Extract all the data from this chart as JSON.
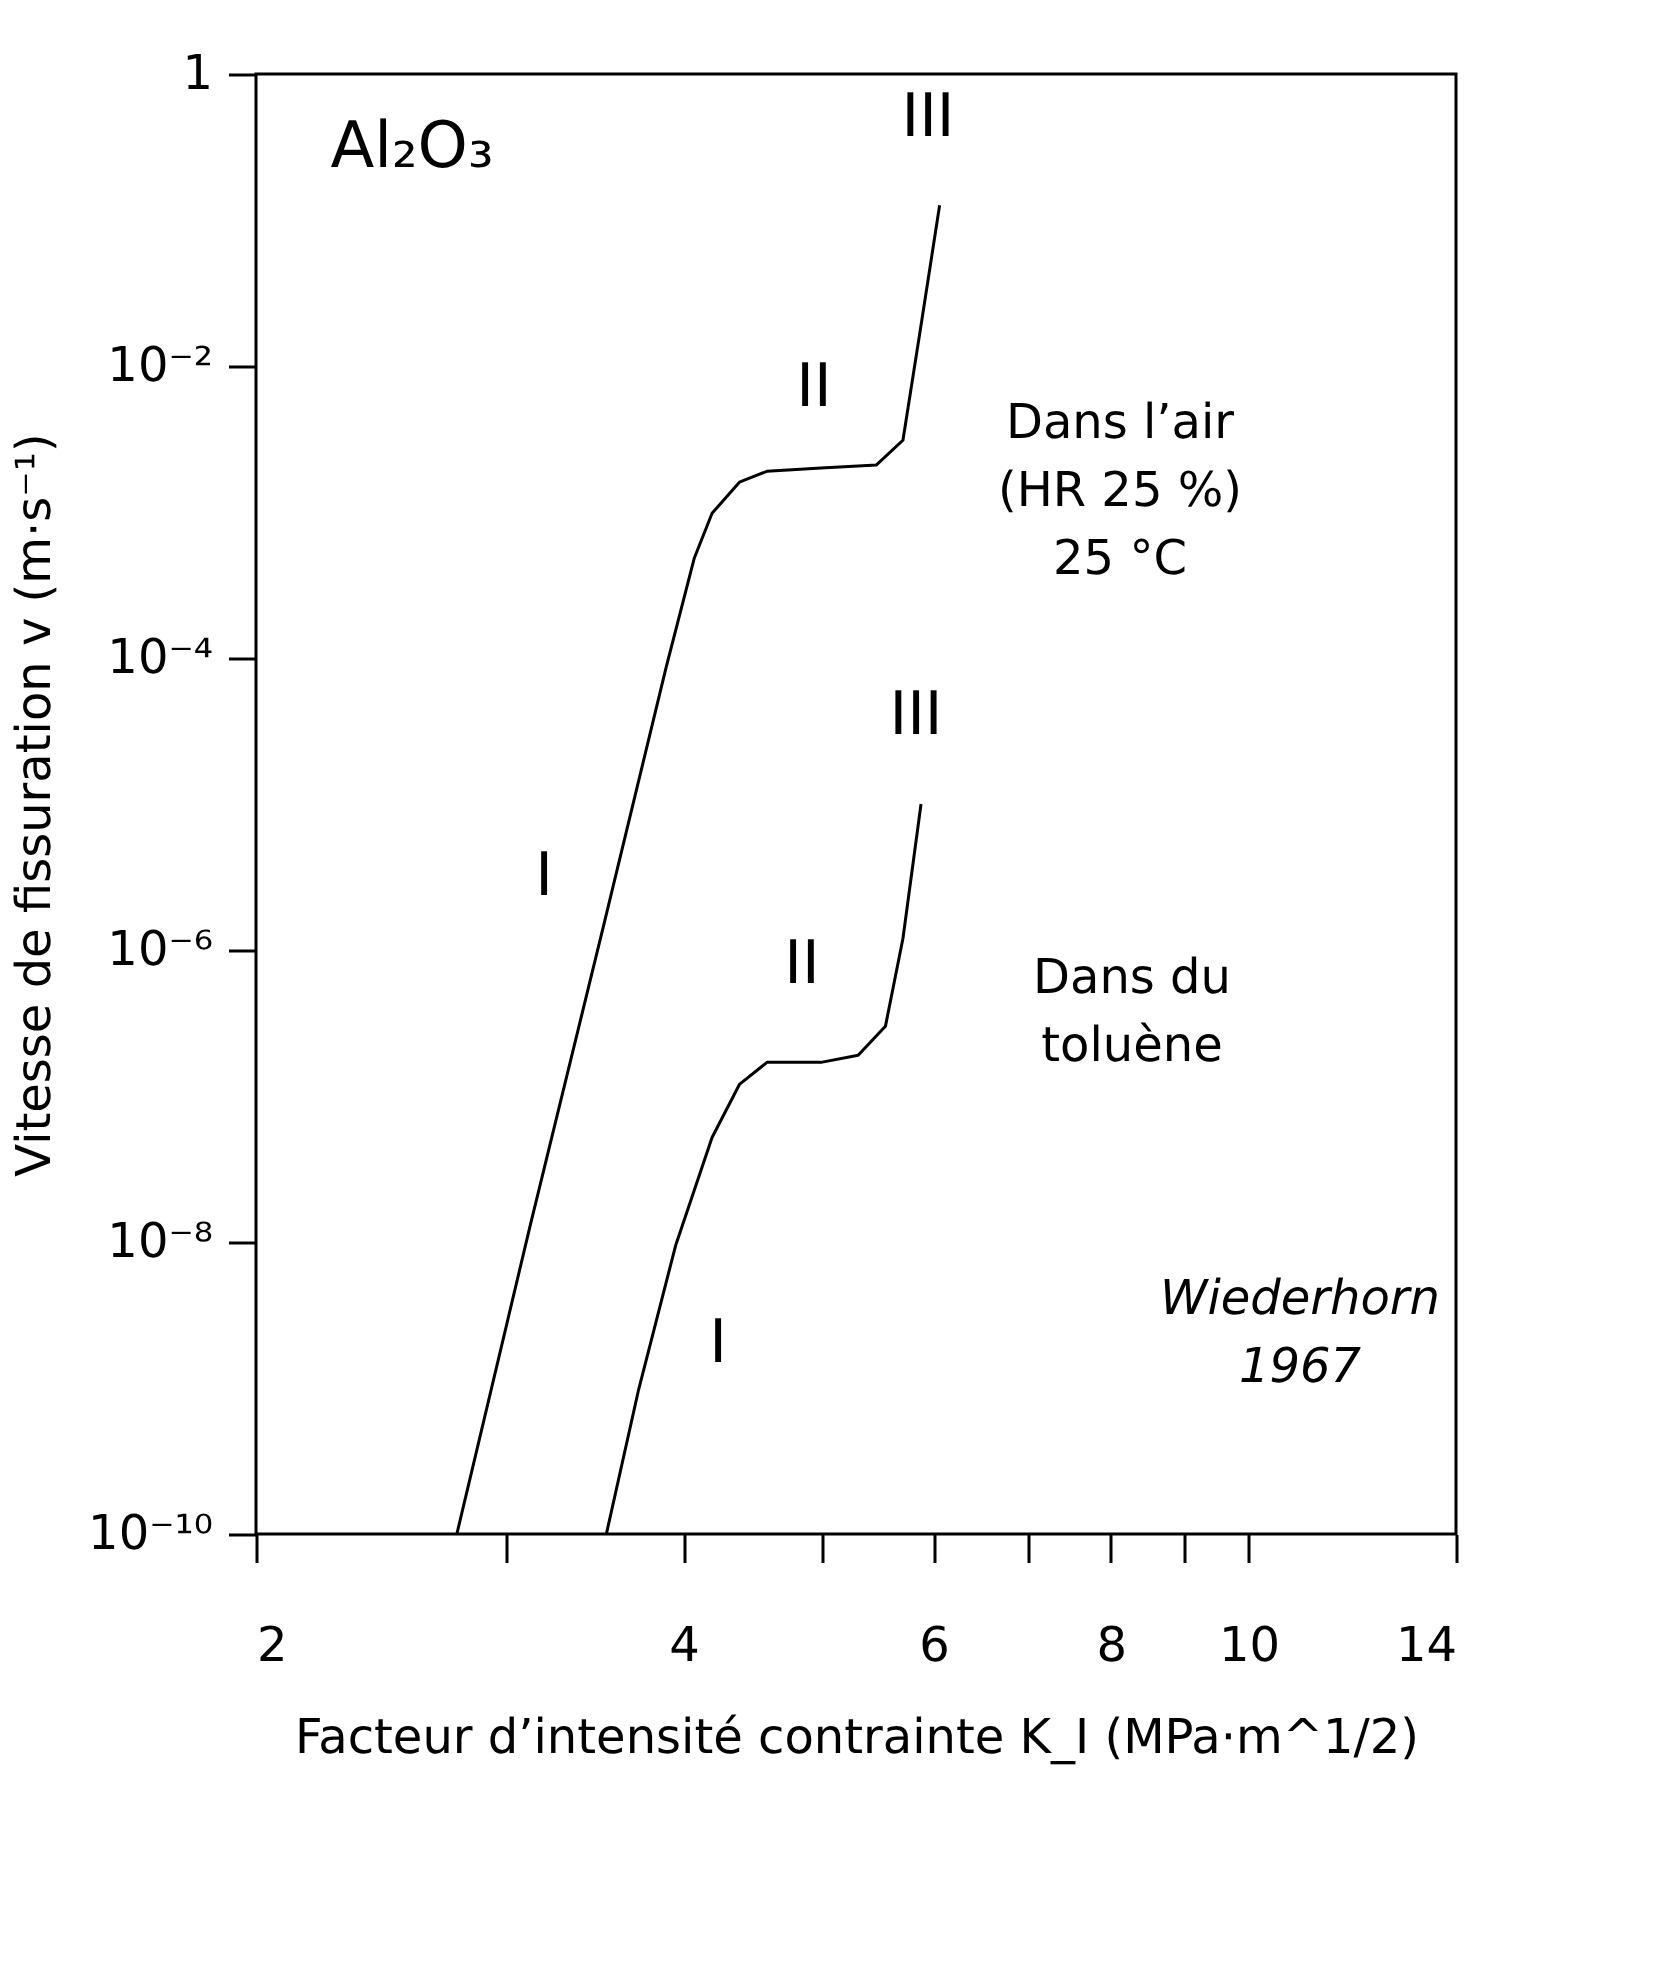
{
  "chart_data": {
    "type": "line",
    "xlabel": "Facteur d’intensité contrainte K_I (MPa·m^1/2)",
    "ylabel": "Vitesse de fissuration v (m·s⁻¹)",
    "log": "xy",
    "grid": false,
    "marker": "none",
    "line_style": "solid",
    "xlim": [
      2,
      14
    ],
    "xticks": [
      2,
      {
        "value": 3,
        "label": null
      },
      4,
      {
        "value": 5,
        "label": null
      },
      6,
      {
        "value": 7,
        "label": null
      },
      8,
      {
        "value": 9,
        "label": null
      },
      10,
      14
    ],
    "ylim": [
      1e-10,
      1
    ],
    "yticks": [
      {
        "value": 1e-10,
        "label": "10⁻¹⁰"
      },
      {
        "value": 1e-08,
        "label": "10⁻⁸"
      },
      {
        "value": 1e-06,
        "label": "10⁻⁶"
      },
      {
        "value": 0.0001,
        "label": "10⁻⁴"
      },
      {
        "value": 0.01,
        "label": "10⁻²"
      },
      1
    ],
    "series": [
      {
        "color": "#000000",
        "x": [
          2.77,
          3.12,
          3.51,
          3.89,
          4.07,
          4.19,
          4.38,
          4.58,
          5.0,
          5.47,
          5.71,
          5.88,
          6.06
        ],
        "values": [
          1e-10,
          1.3e-08,
          1.4e-06,
          8.7e-05,
          0.00048,
          0.00098,
          0.0016,
          0.0019,
          0.002,
          0.0021,
          0.0031,
          0.019,
          0.126
        ]
      },
      {
        "color": "#000000",
        "x": [
          3.53,
          3.72,
          3.95,
          4.19,
          4.38,
          4.58,
          5.0,
          5.31,
          5.55,
          5.71,
          5.88
        ],
        "values": [
          1e-10,
          9.8e-10,
          9.5e-09,
          5.2e-08,
          1.2e-07,
          1.7e-07,
          1.7e-07,
          1.9e-07,
          3e-07,
          1.2e-06,
          1e-05
        ]
      }
    ],
    "annotations": [
      "Al₂O₃",
      "Wiederhorn\n1967",
      "III",
      "II",
      "I",
      "III",
      "II",
      "I",
      "Dans l’air\n(HR 25 %)\n25 °C",
      "Dans du\ntoluène"
    ]
  }
}
